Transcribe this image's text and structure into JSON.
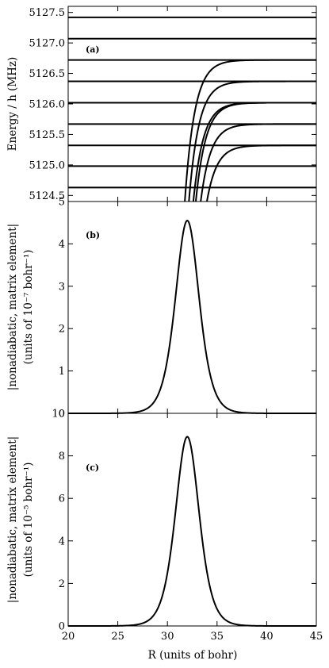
{
  "chart_data": [
    {
      "panel_label": "(a)",
      "type": "line",
      "ylabel": "Energy / h (MHz)",
      "xlim": [
        20,
        45
      ],
      "ylim": [
        5124.4,
        5127.6
      ],
      "yticks": [
        "5124.5",
        "5125.0",
        "5125.5",
        "5126.0",
        "5126.5",
        "5127.0",
        "5127.5"
      ],
      "ytick_values": [
        5124.5,
        5125.0,
        5125.5,
        5126.0,
        5126.5,
        5127.0,
        5127.5
      ],
      "horizontal_levels": [
        5124.63,
        5124.98,
        5125.32,
        5125.67,
        5126.02,
        5126.37,
        5126.72,
        5127.07,
        5127.42
      ],
      "curves": [
        {
          "asymptote": 5125.32,
          "center": 32.1,
          "width": 1.0
        },
        {
          "asymptote": 5125.67,
          "center": 31.8,
          "width": 1.0
        },
        {
          "asymptote": 5126.02,
          "center": 31.55,
          "width": 1.0
        },
        {
          "asymptote": 5126.02,
          "center": 31.3,
          "width": 1.0
        },
        {
          "asymptote": 5126.37,
          "center": 31.05,
          "width": 1.0
        },
        {
          "asymptote": 5126.72,
          "center": 30.8,
          "width": 1.0
        }
      ]
    },
    {
      "panel_label": "(b)",
      "type": "line",
      "ylabel_line1": "|nonadiabatic, matrix element|",
      "ylabel_line2": "(units of 10⁻⁷ bohr⁻¹)",
      "xlim": [
        20,
        45
      ],
      "ylim": [
        0,
        5
      ],
      "yticks": [
        "0",
        "1",
        "2",
        "3",
        "4",
        "5"
      ],
      "ytick_values": [
        0,
        1,
        2,
        3,
        4,
        5
      ],
      "peak": {
        "x": 32.0,
        "y": 4.55,
        "width": 1.6
      }
    },
    {
      "panel_label": "(c)",
      "type": "line",
      "ylabel_line1": "|nonadiabatic, matrix element|",
      "ylabel_line2": "(units of 10⁻⁵ bohr⁻¹)",
      "xlabel": "R (units of bohr)",
      "xlim": [
        20,
        45
      ],
      "xticks": [
        "20",
        "25",
        "30",
        "35",
        "40",
        "45"
      ],
      "xtick_values": [
        20,
        25,
        30,
        35,
        40,
        45
      ],
      "ylim": [
        0,
        10
      ],
      "yticks": [
        "0",
        "2",
        "4",
        "6",
        "8",
        "10"
      ],
      "ytick_values": [
        0,
        2,
        4,
        6,
        8,
        10
      ],
      "peak": {
        "x": 32.0,
        "y": 8.9,
        "width": 1.6
      }
    }
  ]
}
